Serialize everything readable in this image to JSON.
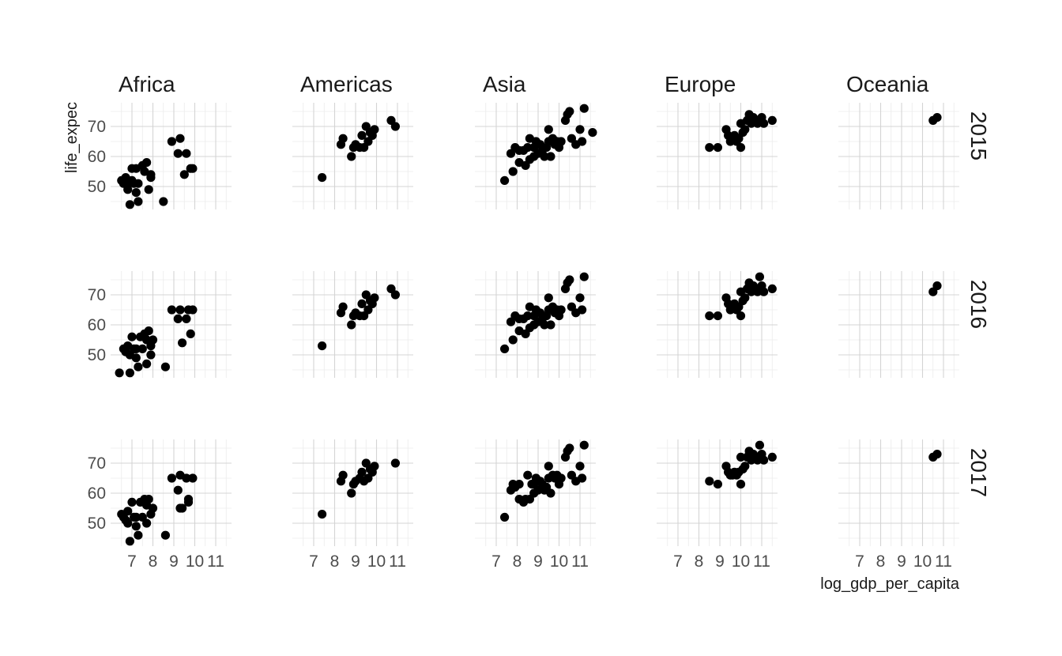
{
  "chart_data": {
    "type": "scatter",
    "facet_cols": [
      "Africa",
      "Americas",
      "Asia",
      "Europe",
      "Oceania"
    ],
    "facet_rows": [
      "2015",
      "2016",
      "2017"
    ],
    "xlabel": "log_gdp_per_capita",
    "ylabel": "life_expec",
    "xlim": [
      6.4,
      11.9
    ],
    "ylim": [
      42,
      78
    ],
    "x_ticks": [
      7,
      8,
      9,
      10,
      11
    ],
    "x_tick_labels": [
      "7",
      "8",
      "9",
      "10",
      "11"
    ],
    "y_ticks": [
      50,
      60,
      70
    ],
    "y_tick_labels": [
      "50",
      "60",
      "70"
    ],
    "grid": true,
    "point_color": "#000000",
    "panels": [
      {
        "col": "Africa",
        "row": "2015",
        "points": [
          [
            6.5,
            52
          ],
          [
            6.6,
            51
          ],
          [
            6.7,
            53
          ],
          [
            6.8,
            49
          ],
          [
            6.8,
            51
          ],
          [
            6.9,
            44
          ],
          [
            7.0,
            56
          ],
          [
            7.0,
            52
          ],
          [
            7.1,
            51
          ],
          [
            7.2,
            48
          ],
          [
            7.2,
            56
          ],
          [
            7.3,
            51
          ],
          [
            7.3,
            45
          ],
          [
            7.5,
            57
          ],
          [
            7.6,
            55
          ],
          [
            7.7,
            58
          ],
          [
            7.8,
            49
          ],
          [
            7.9,
            53
          ],
          [
            7.9,
            54
          ],
          [
            8.5,
            45
          ],
          [
            8.9,
            65
          ],
          [
            9.2,
            61
          ],
          [
            9.3,
            66
          ],
          [
            9.5,
            54
          ],
          [
            9.6,
            61
          ],
          [
            9.8,
            56
          ],
          [
            9.9,
            56
          ]
        ]
      },
      {
        "col": "Americas",
        "row": "2015",
        "points": [
          [
            7.4,
            53
          ],
          [
            8.3,
            64
          ],
          [
            8.4,
            66
          ],
          [
            8.8,
            60
          ],
          [
            8.9,
            63
          ],
          [
            9.0,
            64
          ],
          [
            9.2,
            63
          ],
          [
            9.3,
            67
          ],
          [
            9.4,
            63
          ],
          [
            9.5,
            70
          ],
          [
            9.6,
            65
          ],
          [
            9.7,
            68
          ],
          [
            9.8,
            67
          ],
          [
            9.9,
            69
          ],
          [
            10.7,
            72
          ],
          [
            10.9,
            70
          ]
        ]
      },
      {
        "col": "Asia",
        "row": "2015",
        "points": [
          [
            7.4,
            52
          ],
          [
            7.7,
            61
          ],
          [
            7.8,
            55
          ],
          [
            7.9,
            63
          ],
          [
            8.1,
            58
          ],
          [
            8.1,
            62
          ],
          [
            8.3,
            62
          ],
          [
            8.4,
            57
          ],
          [
            8.5,
            63
          ],
          [
            8.6,
            59
          ],
          [
            8.6,
            66
          ],
          [
            8.8,
            63
          ],
          [
            8.8,
            60
          ],
          [
            8.9,
            65
          ],
          [
            9.0,
            61
          ],
          [
            9.1,
            64
          ],
          [
            9.2,
            62
          ],
          [
            9.3,
            60
          ],
          [
            9.4,
            63
          ],
          [
            9.5,
            65
          ],
          [
            9.5,
            69
          ],
          [
            9.6,
            60
          ],
          [
            9.7,
            66
          ],
          [
            9.8,
            64
          ],
          [
            9.9,
            65
          ],
          [
            10.0,
            63
          ],
          [
            10.1,
            65
          ],
          [
            10.3,
            72
          ],
          [
            10.4,
            74
          ],
          [
            10.5,
            75
          ],
          [
            10.6,
            66
          ],
          [
            10.8,
            64
          ],
          [
            11.0,
            69
          ],
          [
            11.1,
            65
          ],
          [
            11.2,
            76
          ],
          [
            11.6,
            68
          ]
        ]
      },
      {
        "col": "Europe",
        "row": "2015",
        "points": [
          [
            8.5,
            63
          ],
          [
            8.9,
            63
          ],
          [
            9.3,
            69
          ],
          [
            9.4,
            67
          ],
          [
            9.5,
            65
          ],
          [
            9.6,
            66
          ],
          [
            9.7,
            67
          ],
          [
            9.8,
            65
          ],
          [
            9.9,
            66
          ],
          [
            10.0,
            63
          ],
          [
            10.0,
            71
          ],
          [
            10.1,
            68
          ],
          [
            10.2,
            69
          ],
          [
            10.3,
            72
          ],
          [
            10.4,
            74
          ],
          [
            10.5,
            71
          ],
          [
            10.6,
            73
          ],
          [
            10.7,
            72
          ],
          [
            10.8,
            71
          ],
          [
            11.0,
            73
          ],
          [
            11.1,
            71
          ],
          [
            11.5,
            72
          ]
        ]
      },
      {
        "col": "Oceania",
        "row": "2015",
        "points": [
          [
            10.5,
            72
          ],
          [
            10.7,
            73
          ]
        ]
      },
      {
        "col": "Africa",
        "row": "2016",
        "points": [
          [
            6.4,
            44
          ],
          [
            6.6,
            52
          ],
          [
            6.7,
            51
          ],
          [
            6.8,
            53
          ],
          [
            6.9,
            50
          ],
          [
            6.9,
            44
          ],
          [
            7.0,
            56
          ],
          [
            7.1,
            52
          ],
          [
            7.2,
            52
          ],
          [
            7.2,
            49
          ],
          [
            7.3,
            46
          ],
          [
            7.4,
            56
          ],
          [
            7.5,
            52
          ],
          [
            7.6,
            57
          ],
          [
            7.7,
            55
          ],
          [
            7.7,
            47
          ],
          [
            7.8,
            58
          ],
          [
            7.9,
            50
          ],
          [
            7.9,
            53
          ],
          [
            8.0,
            55
          ],
          [
            8.6,
            46
          ],
          [
            8.9,
            65
          ],
          [
            9.2,
            62
          ],
          [
            9.3,
            65
          ],
          [
            9.4,
            54
          ],
          [
            9.6,
            62
          ],
          [
            9.7,
            65
          ],
          [
            9.8,
            57
          ],
          [
            9.9,
            65
          ]
        ]
      },
      {
        "col": "Americas",
        "row": "2016",
        "points": [
          [
            7.4,
            53
          ],
          [
            8.3,
            64
          ],
          [
            8.4,
            66
          ],
          [
            8.8,
            60
          ],
          [
            8.9,
            63
          ],
          [
            9.0,
            64
          ],
          [
            9.2,
            63
          ],
          [
            9.3,
            67
          ],
          [
            9.4,
            63
          ],
          [
            9.5,
            70
          ],
          [
            9.6,
            65
          ],
          [
            9.7,
            68
          ],
          [
            9.8,
            67
          ],
          [
            9.9,
            69
          ],
          [
            10.7,
            72
          ],
          [
            10.9,
            70
          ]
        ]
      },
      {
        "col": "Asia",
        "row": "2016",
        "points": [
          [
            7.4,
            52
          ],
          [
            7.7,
            61
          ],
          [
            7.8,
            55
          ],
          [
            7.9,
            63
          ],
          [
            8.1,
            58
          ],
          [
            8.1,
            62
          ],
          [
            8.3,
            62
          ],
          [
            8.4,
            57
          ],
          [
            8.5,
            63
          ],
          [
            8.6,
            59
          ],
          [
            8.6,
            66
          ],
          [
            8.8,
            63
          ],
          [
            8.8,
            60
          ],
          [
            8.9,
            65
          ],
          [
            9.0,
            61
          ],
          [
            9.1,
            64
          ],
          [
            9.2,
            62
          ],
          [
            9.3,
            60
          ],
          [
            9.4,
            63
          ],
          [
            9.5,
            65
          ],
          [
            9.5,
            69
          ],
          [
            9.6,
            60
          ],
          [
            9.7,
            66
          ],
          [
            9.8,
            64
          ],
          [
            9.9,
            65
          ],
          [
            10.0,
            63
          ],
          [
            10.1,
            65
          ],
          [
            10.3,
            72
          ],
          [
            10.4,
            74
          ],
          [
            10.5,
            75
          ],
          [
            10.6,
            66
          ],
          [
            10.8,
            64
          ],
          [
            11.0,
            69
          ],
          [
            11.1,
            65
          ],
          [
            11.2,
            76
          ]
        ]
      },
      {
        "col": "Europe",
        "row": "2016",
        "points": [
          [
            8.5,
            63
          ],
          [
            8.9,
            63
          ],
          [
            9.3,
            69
          ],
          [
            9.4,
            67
          ],
          [
            9.5,
            65
          ],
          [
            9.6,
            66
          ],
          [
            9.7,
            67
          ],
          [
            9.8,
            65
          ],
          [
            9.9,
            66
          ],
          [
            10.0,
            63
          ],
          [
            10.0,
            71
          ],
          [
            10.1,
            68
          ],
          [
            10.2,
            69
          ],
          [
            10.3,
            72
          ],
          [
            10.4,
            74
          ],
          [
            10.5,
            71
          ],
          [
            10.6,
            73
          ],
          [
            10.7,
            72
          ],
          [
            10.8,
            71
          ],
          [
            10.9,
            76
          ],
          [
            11.0,
            73
          ],
          [
            11.1,
            71
          ],
          [
            11.5,
            72
          ]
        ]
      },
      {
        "col": "Oceania",
        "row": "2016",
        "points": [
          [
            10.5,
            71
          ],
          [
            10.7,
            73
          ]
        ]
      },
      {
        "col": "Africa",
        "row": "2017",
        "points": [
          [
            6.5,
            53
          ],
          [
            6.6,
            52
          ],
          [
            6.7,
            51
          ],
          [
            6.8,
            54
          ],
          [
            6.8,
            50
          ],
          [
            6.9,
            44
          ],
          [
            7.0,
            57
          ],
          [
            7.1,
            52
          ],
          [
            7.2,
            52
          ],
          [
            7.2,
            49
          ],
          [
            7.3,
            46
          ],
          [
            7.4,
            57
          ],
          [
            7.5,
            52
          ],
          [
            7.6,
            58
          ],
          [
            7.7,
            56
          ],
          [
            7.7,
            50
          ],
          [
            7.8,
            58
          ],
          [
            7.9,
            53
          ],
          [
            8.0,
            55
          ],
          [
            8.6,
            46
          ],
          [
            8.9,
            65
          ],
          [
            9.2,
            61
          ],
          [
            9.3,
            55
          ],
          [
            9.3,
            66
          ],
          [
            9.4,
            55
          ],
          [
            9.6,
            65
          ],
          [
            9.7,
            58
          ],
          [
            9.7,
            57
          ],
          [
            9.9,
            65
          ]
        ]
      },
      {
        "col": "Americas",
        "row": "2017",
        "points": [
          [
            7.4,
            53
          ],
          [
            8.3,
            64
          ],
          [
            8.4,
            66
          ],
          [
            8.8,
            60
          ],
          [
            8.9,
            63
          ],
          [
            9.0,
            64
          ],
          [
            9.2,
            65
          ],
          [
            9.3,
            67
          ],
          [
            9.4,
            64
          ],
          [
            9.5,
            70
          ],
          [
            9.6,
            65
          ],
          [
            9.7,
            68
          ],
          [
            9.8,
            67
          ],
          [
            9.9,
            69
          ],
          [
            10.9,
            70
          ]
        ]
      },
      {
        "col": "Asia",
        "row": "2017",
        "points": [
          [
            7.4,
            52
          ],
          [
            7.7,
            61
          ],
          [
            7.8,
            63
          ],
          [
            7.9,
            62
          ],
          [
            8.1,
            58
          ],
          [
            8.1,
            63
          ],
          [
            8.3,
            57
          ],
          [
            8.4,
            58
          ],
          [
            8.5,
            66
          ],
          [
            8.6,
            58
          ],
          [
            8.7,
            63
          ],
          [
            8.8,
            63
          ],
          [
            8.8,
            60
          ],
          [
            8.9,
            65
          ],
          [
            9.0,
            61
          ],
          [
            9.1,
            64
          ],
          [
            9.2,
            63
          ],
          [
            9.3,
            61
          ],
          [
            9.4,
            62
          ],
          [
            9.5,
            65
          ],
          [
            9.5,
            69
          ],
          [
            9.6,
            60
          ],
          [
            9.7,
            66
          ],
          [
            9.8,
            65
          ],
          [
            9.9,
            66
          ],
          [
            10.0,
            63
          ],
          [
            10.1,
            65
          ],
          [
            10.3,
            72
          ],
          [
            10.4,
            74
          ],
          [
            10.5,
            75
          ],
          [
            10.6,
            66
          ],
          [
            10.8,
            64
          ],
          [
            11.0,
            69
          ],
          [
            11.1,
            65
          ],
          [
            11.2,
            76
          ]
        ]
      },
      {
        "col": "Europe",
        "row": "2017",
        "points": [
          [
            8.5,
            64
          ],
          [
            8.9,
            63
          ],
          [
            9.3,
            69
          ],
          [
            9.4,
            67
          ],
          [
            9.5,
            66
          ],
          [
            9.6,
            66
          ],
          [
            9.7,
            67
          ],
          [
            9.8,
            66
          ],
          [
            9.9,
            67
          ],
          [
            10.0,
            63
          ],
          [
            10.0,
            72
          ],
          [
            10.1,
            68
          ],
          [
            10.2,
            69
          ],
          [
            10.3,
            72
          ],
          [
            10.4,
            74
          ],
          [
            10.5,
            71
          ],
          [
            10.6,
            73
          ],
          [
            10.7,
            72
          ],
          [
            10.8,
            71
          ],
          [
            10.9,
            76
          ],
          [
            11.0,
            73
          ],
          [
            11.1,
            71
          ],
          [
            11.5,
            72
          ]
        ]
      },
      {
        "col": "Oceania",
        "row": "2017",
        "points": [
          [
            10.5,
            72
          ],
          [
            10.7,
            73
          ]
        ]
      }
    ]
  }
}
